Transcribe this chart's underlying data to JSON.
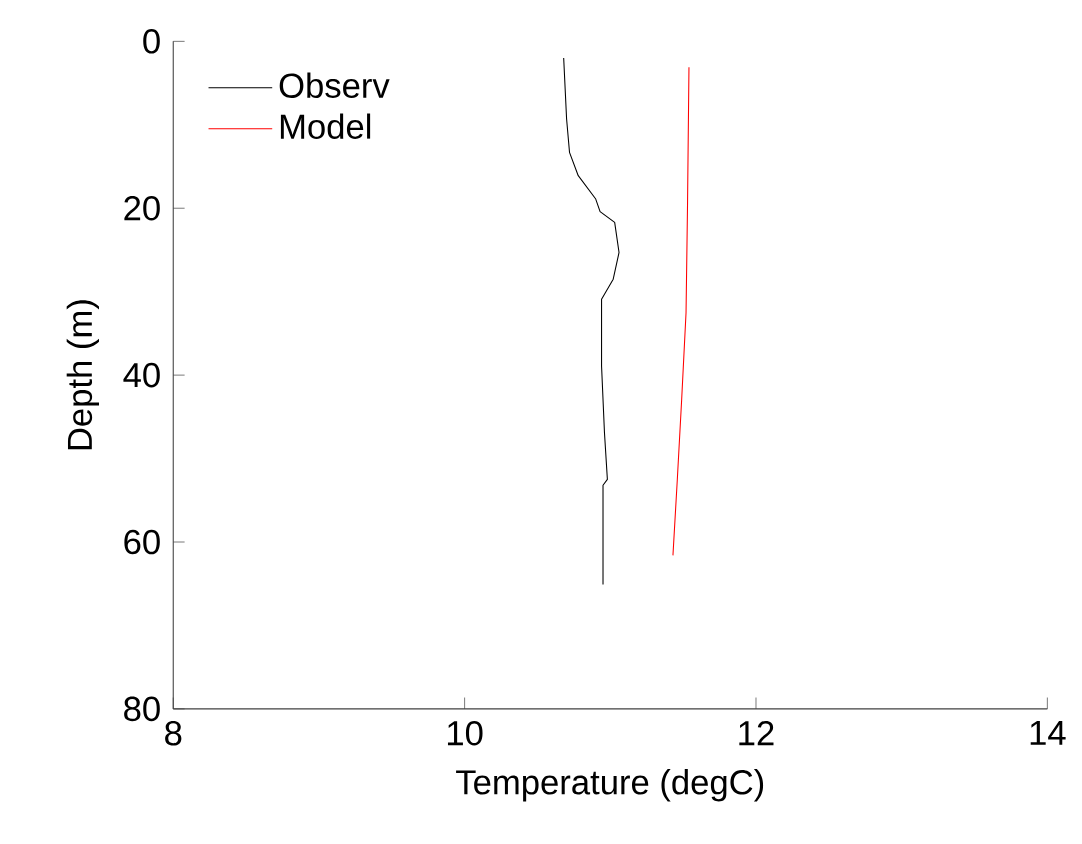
{
  "chart_data": {
    "type": "line",
    "xlabel": "Temperature (degC)",
    "ylabel": "Depth (m)",
    "xlim": [
      8,
      14
    ],
    "ylim": [
      80,
      0
    ],
    "xticks": [
      8,
      10,
      12,
      14
    ],
    "yticks": [
      0,
      20,
      40,
      60,
      80
    ],
    "grid": false,
    "legend": "top left",
    "marker": "none",
    "line_style": "solid",
    "series": [
      {
        "name": "Observ",
        "color": "#000000",
        "x": [
          10.68,
          10.7,
          10.72,
          10.78,
          10.9,
          10.93,
          11.03,
          11.06,
          11.02,
          10.94,
          10.94,
          10.96,
          10.98,
          10.95,
          10.95
        ],
        "values": [
          2.0,
          9.3,
          13.3,
          16.1,
          18.9,
          20.4,
          21.7,
          25.3,
          28.5,
          30.9,
          38.9,
          46.9,
          52.5,
          53.2,
          65.1
        ]
      },
      {
        "name": "Model",
        "color": "#ff0000",
        "x": [
          11.54,
          11.53,
          11.52,
          11.49,
          11.46,
          11.43
        ],
        "values": [
          3.1,
          19.7,
          32.5,
          42.9,
          52.5,
          61.6
        ]
      }
    ]
  }
}
